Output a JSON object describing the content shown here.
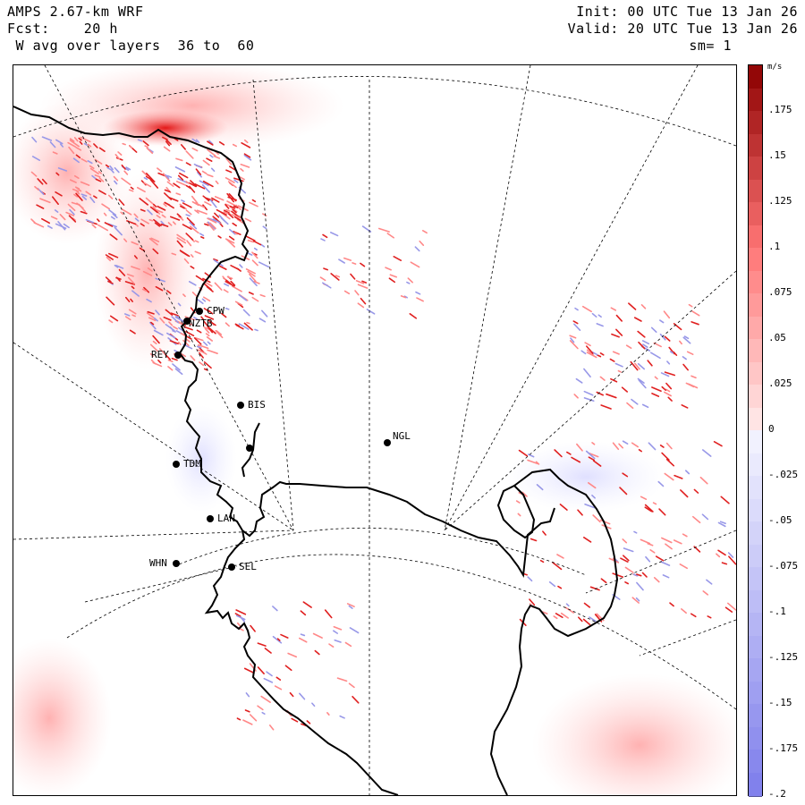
{
  "header": {
    "title": "AMPS 2.67-km WRF",
    "forecast": "Fcst:    20 h",
    "field": " W avg over layers  36 to  60",
    "init": "Init: 00 UTC Tue 13 Jan 26",
    "valid": "Valid: 20 UTC Tue 13 Jan 26",
    "smoothing": "sm= 1"
  },
  "map": {
    "projection": "polar stereographic",
    "region": "Ross Sea / Ross Ice Shelf, Antarctica",
    "stations": [
      {
        "id": "CPW"
      },
      {
        "id": "NZTB"
      },
      {
        "id": "REY"
      },
      {
        "id": "BIS"
      },
      {
        "id": "NGL"
      },
      {
        "id": "TDM"
      },
      {
        "id": "LAN"
      },
      {
        "id": "WHN"
      },
      {
        "id": "SEL"
      }
    ],
    "coastline_color": "#000000",
    "gridline_style": "dashed"
  },
  "colorbar": {
    "units": "m/s",
    "min": -0.2,
    "max": 0.2,
    "tick_labels": [
      ".175",
      ".15",
      ".125",
      ".1",
      ".075",
      ".05",
      ".025",
      "0",
      "-.025",
      "-.05",
      "-.075",
      "-.1",
      "-.125",
      "-.15",
      "-.175",
      "-.2"
    ],
    "tick_values": [
      0.175,
      0.15,
      0.125,
      0.1,
      0.075,
      0.05,
      0.025,
      0,
      -0.025,
      -0.05,
      -0.075,
      -0.1,
      -0.125,
      -0.15,
      -0.175,
      -0.2
    ],
    "positive_color": "#c00000",
    "negative_color": "#8080e0"
  }
}
